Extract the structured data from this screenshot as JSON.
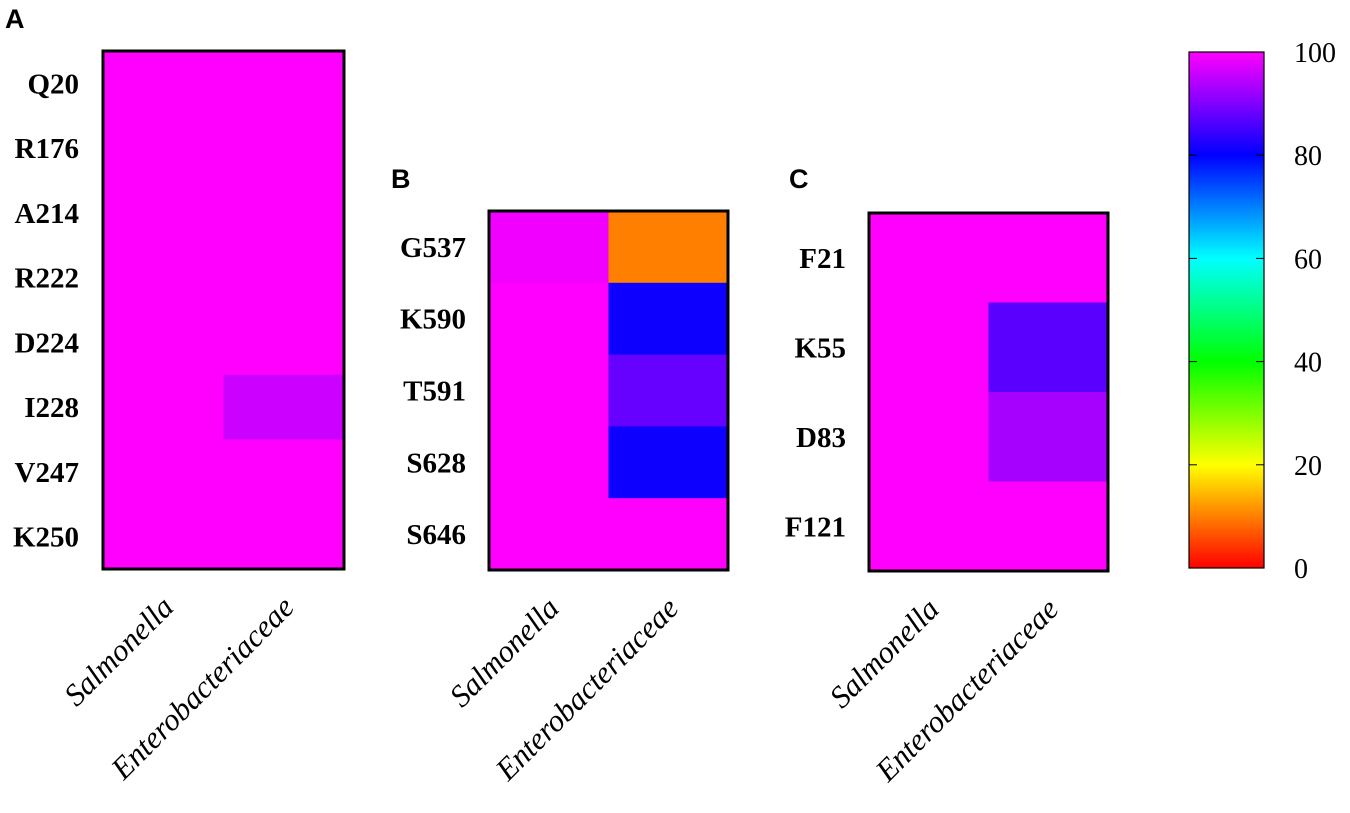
{
  "chart_data": [
    {
      "panel": "A",
      "type": "heatmap",
      "rows": [
        "Q20",
        "R176",
        "A214",
        "R222",
        "D224",
        "I228",
        "V247",
        "K250"
      ],
      "columns": [
        "Salmonella",
        "Enterobacteriaceae"
      ],
      "values": [
        [
          100,
          100
        ],
        [
          100,
          100
        ],
        [
          100,
          100
        ],
        [
          100,
          100
        ],
        [
          100,
          100
        ],
        [
          100,
          96
        ],
        [
          100,
          100
        ],
        [
          100,
          100
        ]
      ]
    },
    {
      "panel": "B",
      "type": "heatmap",
      "rows": [
        "G537",
        "K590",
        "T591",
        "S628",
        "S646"
      ],
      "columns": [
        "Salmonella",
        "Enterobacteriaceae"
      ],
      "values": [
        [
          99,
          10
        ],
        [
          100,
          81
        ],
        [
          100,
          88
        ],
        [
          100,
          81
        ],
        [
          100,
          100
        ]
      ]
    },
    {
      "panel": "C",
      "type": "heatmap",
      "rows": [
        "F21",
        "K55",
        "D83",
        "F121"
      ],
      "columns": [
        "Salmonella",
        "Enterobacteriaceae"
      ],
      "values": [
        [
          100,
          100
        ],
        [
          100,
          87
        ],
        [
          100,
          93
        ],
        [
          100,
          100
        ]
      ]
    }
  ],
  "colorbar": {
    "min": 0,
    "max": 100,
    "ticks": [
      "0",
      "20",
      "40",
      "60",
      "80",
      "100"
    ],
    "stops": [
      {
        "value": 0,
        "color": "#ff0000"
      },
      {
        "value": 10,
        "color": "#ff7f00"
      },
      {
        "value": 20,
        "color": "#ffff00"
      },
      {
        "value": 40,
        "color": "#00ff00"
      },
      {
        "value": 60,
        "color": "#00ffff"
      },
      {
        "value": 80,
        "color": "#0000ff"
      },
      {
        "value": 90,
        "color": "#8000ff"
      },
      {
        "value": 100,
        "color": "#ff00ff"
      }
    ]
  }
}
